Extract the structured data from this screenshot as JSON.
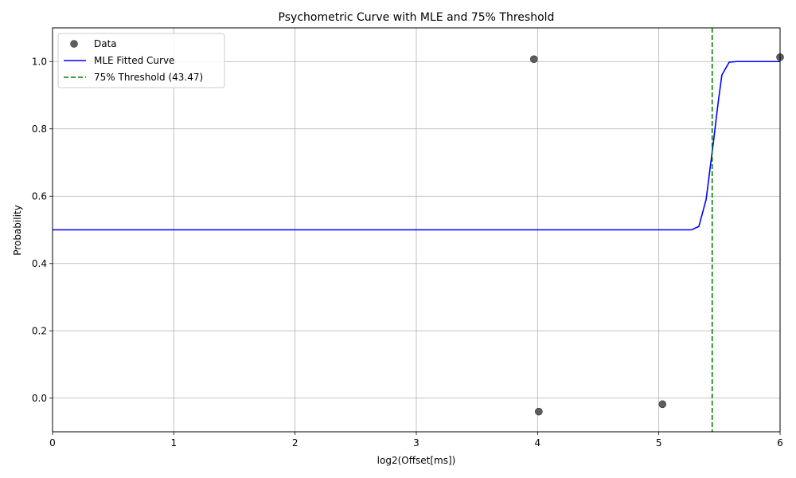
{
  "chart_data": {
    "type": "line",
    "title": "Psychometric Curve with MLE and 75% Threshold",
    "xlabel": "log2(Offset[ms])",
    "ylabel": "Probability",
    "xlim": [
      0,
      6
    ],
    "ylim": [
      -0.1,
      1.1
    ],
    "x_ticks": [
      "0",
      "1",
      "2",
      "3",
      "4",
      "5",
      "6"
    ],
    "y_ticks": [
      "0.0",
      "0.2",
      "0.4",
      "0.6",
      "0.8",
      "1.0"
    ],
    "grid": true,
    "legend_position": "upper-left",
    "series": [
      {
        "name": "Data",
        "kind": "scatter",
        "color": "#4d4d4d",
        "points": [
          {
            "x": 3.97,
            "y": 1.007
          },
          {
            "x": 4.01,
            "y": -0.04
          },
          {
            "x": 5.03,
            "y": -0.018
          },
          {
            "x": 6.0,
            "y": 1.013
          }
        ]
      },
      {
        "name": "MLE Fitted Curve",
        "kind": "line",
        "color": "#0000ff",
        "points": [
          {
            "x": 0.0,
            "y": 0.5
          },
          {
            "x": 5.27,
            "y": 0.5
          },
          {
            "x": 5.33,
            "y": 0.51
          },
          {
            "x": 5.39,
            "y": 0.59
          },
          {
            "x": 5.45,
            "y": 0.76
          },
          {
            "x": 5.49,
            "y": 0.88
          },
          {
            "x": 5.52,
            "y": 0.96
          },
          {
            "x": 5.58,
            "y": 0.998
          },
          {
            "x": 5.64,
            "y": 1.0
          },
          {
            "x": 6.0,
            "y": 1.0
          }
        ]
      },
      {
        "name": "75% Threshold (43.47)",
        "kind": "vline",
        "color": "#008000",
        "x": 5.44
      }
    ]
  }
}
